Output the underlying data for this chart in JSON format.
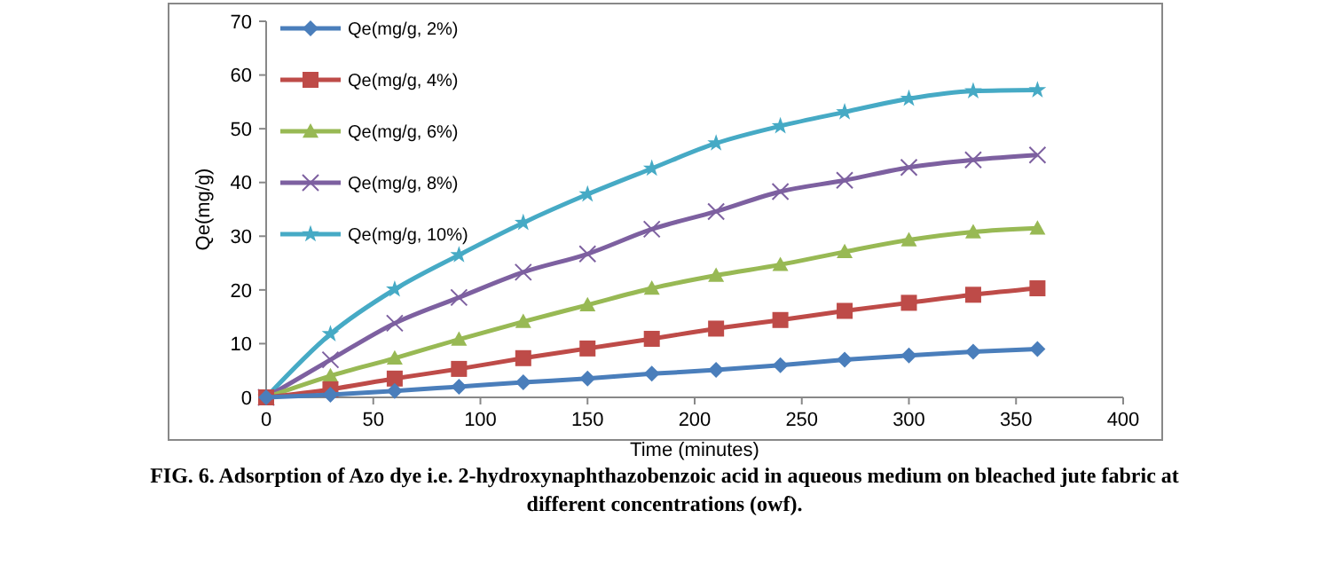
{
  "chart_data": {
    "type": "line",
    "title": "FIG. 6. Adsorption of Azo dye i.e. 2-hydroxynaphthazobenzoic acid in aqueous medium on bleached jute fabric at different concentrations (owf).",
    "xlabel": "Time (minutes)",
    "ylabel": "Qe(mg/g)",
    "x": [
      0,
      30,
      60,
      90,
      120,
      150,
      180,
      210,
      240,
      270,
      300,
      330,
      360
    ],
    "xlim": [
      0,
      400
    ],
    "xticks": [
      0,
      50,
      100,
      150,
      200,
      250,
      300,
      350,
      400
    ],
    "ylim": [
      0,
      70
    ],
    "yticks": [
      0,
      10,
      20,
      30,
      40,
      50,
      60,
      70
    ],
    "grid": false,
    "legend": "top left",
    "line_style": "solid",
    "series": [
      {
        "name": "Qe(mg/g, 2%)",
        "color": "#4a7ebb",
        "marker": "diamond",
        "values": [
          0,
          0.5,
          1.2,
          2,
          2.8,
          3.5,
          4.4,
          5.1,
          6,
          7,
          7.8,
          8.5,
          9
        ]
      },
      {
        "name": "Qe(mg/g, 4%)",
        "color": "#be4b48",
        "marker": "square",
        "values": [
          0,
          1.5,
          3.5,
          5.3,
          7.3,
          9.1,
          10.9,
          12.8,
          14.4,
          16.1,
          17.6,
          19.1,
          20.3
        ]
      },
      {
        "name": "Qe(mg/g, 6%)",
        "color": "#98b954",
        "marker": "triangle",
        "values": [
          0,
          4,
          7.3,
          10.8,
          14.1,
          17.2,
          20.3,
          22.7,
          24.7,
          27.1,
          29.3,
          30.8,
          31.5
        ]
      },
      {
        "name": "Qe(mg/g, 8%)",
        "color": "#7d60a0",
        "marker": "cross",
        "values": [
          0,
          7,
          13.8,
          18.6,
          23.3,
          26.7,
          31.3,
          34.6,
          38.3,
          40.4,
          42.8,
          44.2,
          45.1
        ]
      },
      {
        "name": "Qe(mg/g, 10%)",
        "color": "#46aac5",
        "marker": "star",
        "values": [
          0,
          11.8,
          20.1,
          26.5,
          32.5,
          37.8,
          42.6,
          47.3,
          50.5,
          53.1,
          55.6,
          57,
          57.2
        ]
      }
    ]
  }
}
